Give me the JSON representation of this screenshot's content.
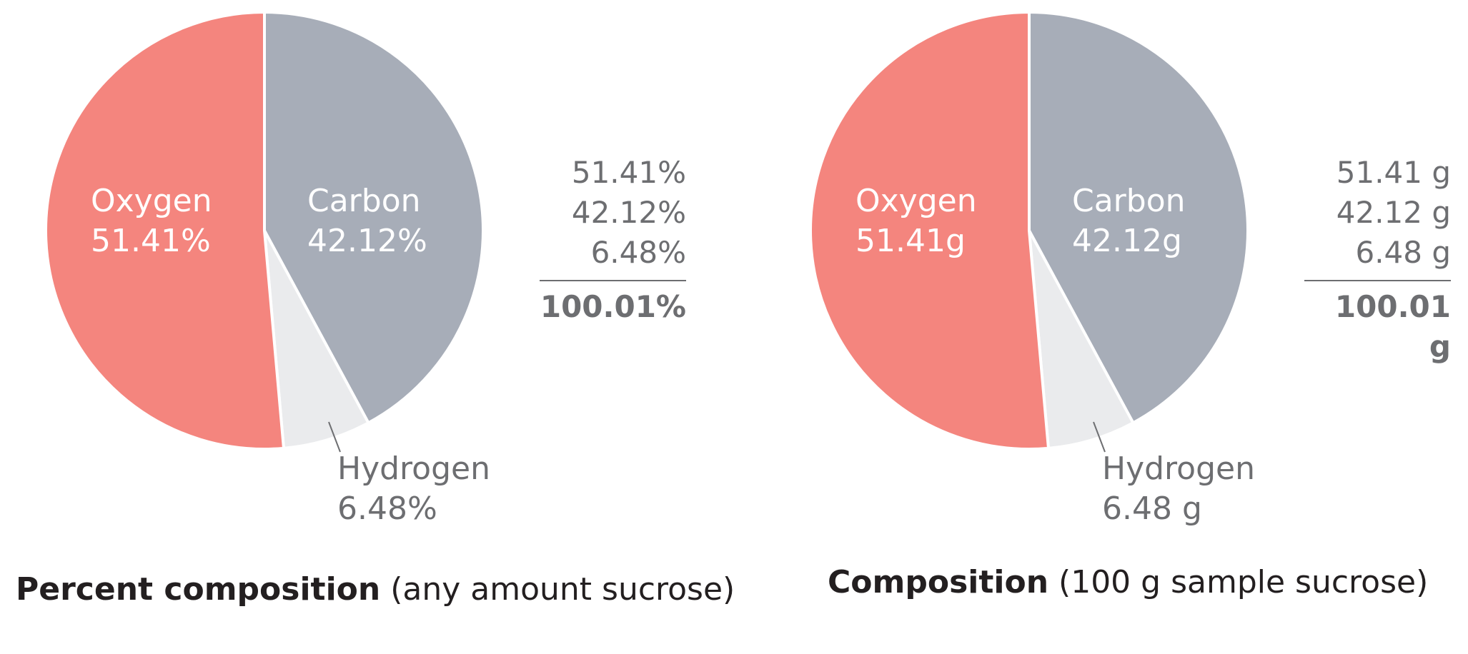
{
  "chart_data": [
    {
      "type": "pie",
      "title": "Percent composition",
      "subtitle": "(any amount sucrose)",
      "slices": [
        {
          "name": "Carbon",
          "value": 42.12,
          "label": "42.12%",
          "color": "#a7adb8"
        },
        {
          "name": "Hydrogen",
          "value": 6.48,
          "label": "6.48%",
          "color": "#eaebed"
        },
        {
          "name": "Oxygen",
          "value": 51.41,
          "label": "51.41%",
          "color": "#f4857e"
        }
      ],
      "summary": {
        "values": [
          "51.41%",
          "42.12%",
          "6.48%"
        ],
        "total": "100.01%"
      }
    },
    {
      "type": "pie",
      "title": "Composition",
      "subtitle": "(100 g sample sucrose)",
      "slices": [
        {
          "name": "Carbon",
          "value": 42.12,
          "label": "42.12g",
          "color": "#a7adb8"
        },
        {
          "name": "Hydrogen",
          "value": 6.48,
          "label": "6.48 g",
          "color": "#eaebed"
        },
        {
          "name": "Oxygen",
          "value": 51.41,
          "label": "51.41g",
          "color": "#f4857e"
        }
      ],
      "summary": {
        "values": [
          "51.41 g",
          "42.12 g",
          "6.48 g"
        ],
        "total": "100.01 g"
      }
    }
  ]
}
